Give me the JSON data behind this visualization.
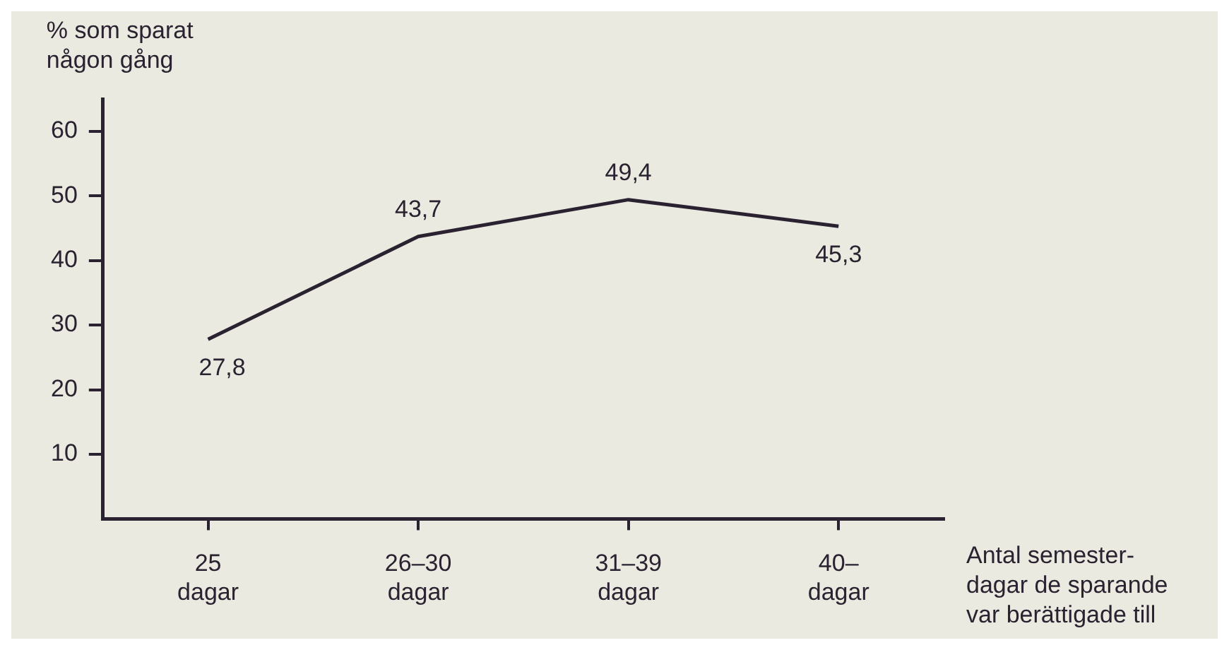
{
  "chart_data": {
    "type": "line",
    "ylabel": "% som sparat\nnågon gång",
    "xlabel": "Antal semester-\ndagar de sparande\nvar berättigade till",
    "categories": [
      "25\ndagar",
      "26–30\ndagar",
      "31–39\ndagar",
      "40–\ndagar"
    ],
    "values": [
      27.8,
      43.7,
      49.4,
      45.3
    ],
    "value_labels": [
      "27,8",
      "43,7",
      "49,4",
      "45,3"
    ],
    "color": "#2a2230",
    "ylim": [
      0,
      65
    ],
    "yticks": [
      10,
      20,
      30,
      40,
      50,
      60
    ],
    "grid": false,
    "legend": false,
    "marker": "none",
    "line_style": "solid"
  }
}
